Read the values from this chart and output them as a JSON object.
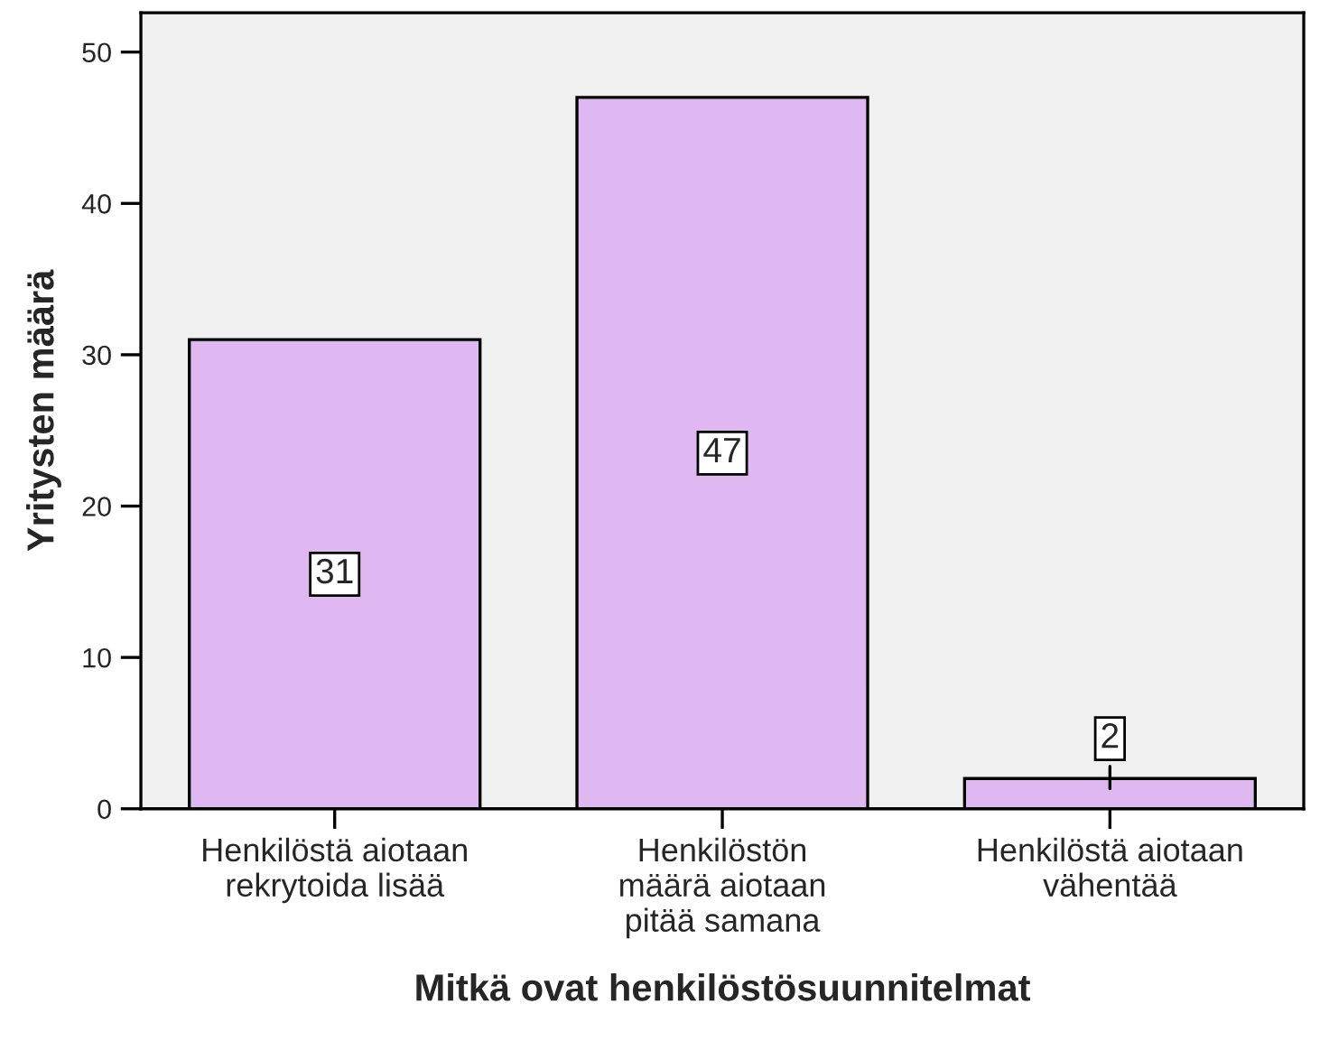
{
  "chart_data": {
    "type": "bar",
    "xlabel": "Mitkä ovat henkilöstösuunnitelmat",
    "ylabel": "Yritysten määrä",
    "categories": [
      "Henkilöstä aiotaan\nrekrytoida lisää",
      "Henkilöstön\nmäärä aiotaan\npitää samana",
      "Henkilöstä aiotaan\nvähentää"
    ],
    "values": [
      31,
      47,
      2
    ],
    "color": "#dfb8f2",
    "ylim": [
      0,
      52.6
    ],
    "yticks": [
      0,
      10,
      20,
      30,
      40,
      50
    ],
    "grid": false,
    "data_labels": true
  }
}
